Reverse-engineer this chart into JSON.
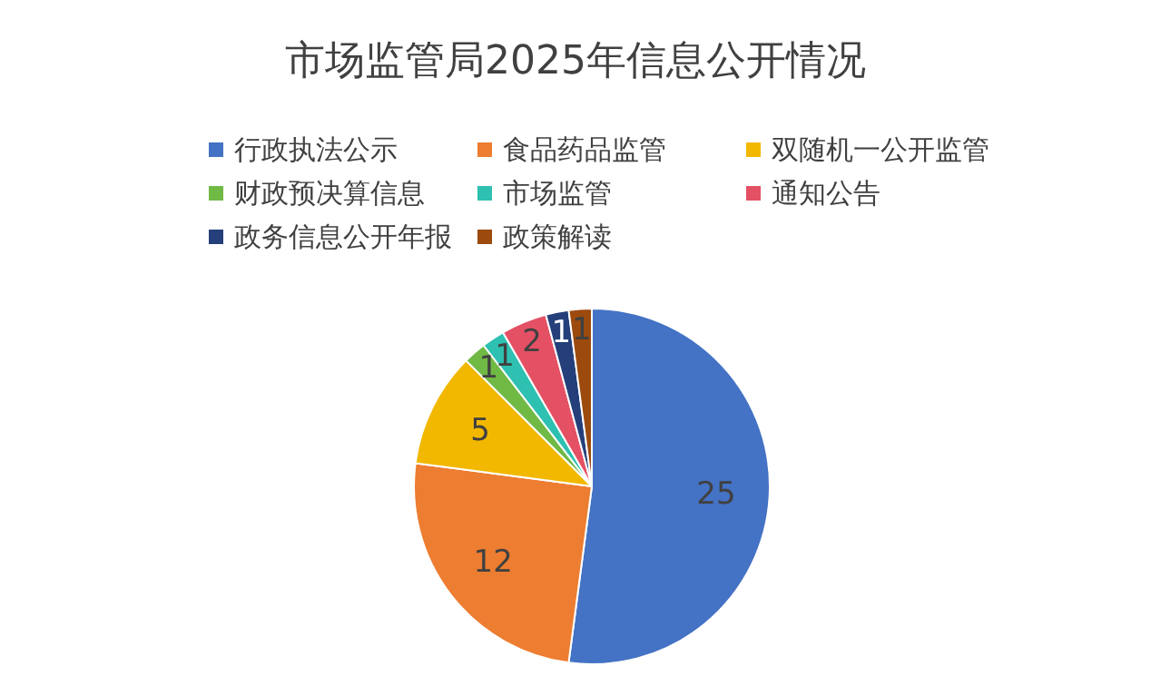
{
  "chart_data": {
    "type": "pie",
    "title": "市场监管局2025年信息公开情况",
    "categories": [
      "行政执法公示",
      "食品药品监管",
      "双随机一公开监管",
      "财政预决算信息",
      "市场监管",
      "通知公告",
      "政务信息公开年报",
      "政策解读"
    ],
    "values": [
      25,
      12,
      5,
      1,
      1,
      2,
      1,
      1
    ],
    "colors": [
      "#4472c4",
      "#ed7d31",
      "#f2b800",
      "#70b944",
      "#2ec0b0",
      "#e45064",
      "#243f7a",
      "#9c4a0e"
    ],
    "data_labels": true,
    "legend": "top"
  }
}
